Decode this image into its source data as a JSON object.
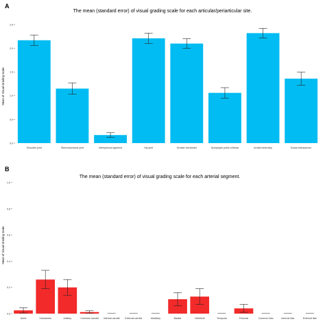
{
  "chart_data": [
    {
      "panel_label": "A",
      "type": "bar",
      "title": "The mean (standard error) of visual grading scale for each articular/periarticular site.",
      "ylabel": "Mean of Visual Grading Scale",
      "xlabel": "",
      "ylim": [
        0,
        2.6
      ],
      "yticks": [
        "0.0",
        "0.5",
        "1.0",
        "1.5",
        "2.0",
        "2.5"
      ],
      "ytick_values": [
        0,
        0.5,
        1.0,
        1.5,
        2.0,
        2.5
      ],
      "categories": [
        "Shoulder joint",
        "Sternoclavicular joint",
        "Interspinous ligament",
        "Hip joint",
        "Greater trochanter",
        "Symphysis pubis orthesis",
        "Ischial tuberosity",
        "Bursa interspinous"
      ],
      "values": [
        2.17,
        1.15,
        0.17,
        2.21,
        2.1,
        1.06,
        2.32,
        1.36
      ],
      "errors": [
        0.11,
        0.12,
        0.05,
        0.11,
        0.1,
        0.11,
        0.1,
        0.14
      ],
      "color": "#00bcf2",
      "grid": false
    },
    {
      "panel_label": "B",
      "type": "bar",
      "title": "The mean (standard error) of visual grading scale for each arterial segment.",
      "ylabel": "Mean of Visual Grading Scale",
      "xlabel": "",
      "ylim": [
        0,
        1.05
      ],
      "yticks": [
        "0.0",
        "0.2",
        "0.4",
        "0.6",
        "0.8",
        "1.0"
      ],
      "ytick_values": [
        0,
        0.2,
        0.4,
        0.6,
        0.8,
        1.0
      ],
      "categories": [
        "Aorta",
        "Subclavian",
        "Axillary",
        "Common carotid",
        "Internal carotid",
        "External carotid",
        "Maxillary",
        "Basilar",
        "Vertebral",
        "Temporal",
        "Femoral",
        "Common iliac",
        "Internal iliac",
        "External iliac"
      ],
      "values": [
        0.025,
        0.26,
        0.2,
        0.012,
        0,
        0,
        0,
        0.11,
        0.13,
        0,
        0.04,
        0,
        0,
        0
      ],
      "errors": [
        0.02,
        0.07,
        0.06,
        0.01,
        0,
        0,
        0,
        0.05,
        0.06,
        0,
        0.03,
        0,
        0,
        0
      ],
      "color": "#f22a2a",
      "grid": false
    }
  ]
}
